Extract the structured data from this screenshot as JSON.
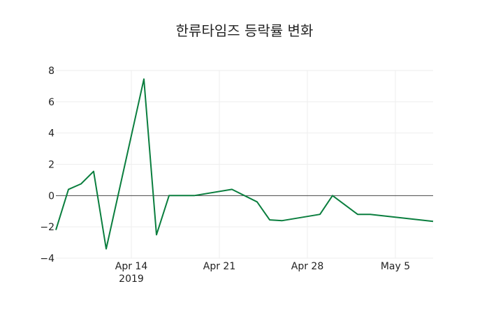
{
  "chart_data": {
    "type": "line",
    "title": "한류타임즈 등락률 변화",
    "xlabel": "",
    "ylabel": "",
    "ylim": [
      -4,
      8
    ],
    "yticks": [
      8,
      6,
      4,
      2,
      0,
      -2,
      -4
    ],
    "ytick_labels": [
      "8",
      "6",
      "4",
      "2",
      "0",
      "−2",
      "−4"
    ],
    "xtick_labels": [
      "Apr 14\n2019",
      "Apr 21",
      "Apr 28",
      "May 5"
    ],
    "xtick_dates": [
      "2019-04-14",
      "2019-04-21",
      "2019-04-28",
      "2019-05-05"
    ],
    "grid": true,
    "line_color": "#0a7e3e",
    "series": [
      {
        "name": "등락률",
        "x": [
          "2019-04-08",
          "2019-04-09",
          "2019-04-10",
          "2019-04-11",
          "2019-04-12",
          "2019-04-15",
          "2019-04-16",
          "2019-04-17",
          "2019-04-19",
          "2019-04-22",
          "2019-04-24",
          "2019-04-25",
          "2019-04-26",
          "2019-04-29",
          "2019-04-30",
          "2019-05-02",
          "2019-05-03",
          "2019-05-08"
        ],
        "values": [
          -2.2,
          0.4,
          0.75,
          1.55,
          -3.4,
          7.45,
          -2.5,
          0.0,
          0.0,
          0.4,
          -0.4,
          -1.55,
          -1.6,
          -1.2,
          0.0,
          -1.2,
          -1.2,
          -1.65
        ]
      }
    ]
  }
}
